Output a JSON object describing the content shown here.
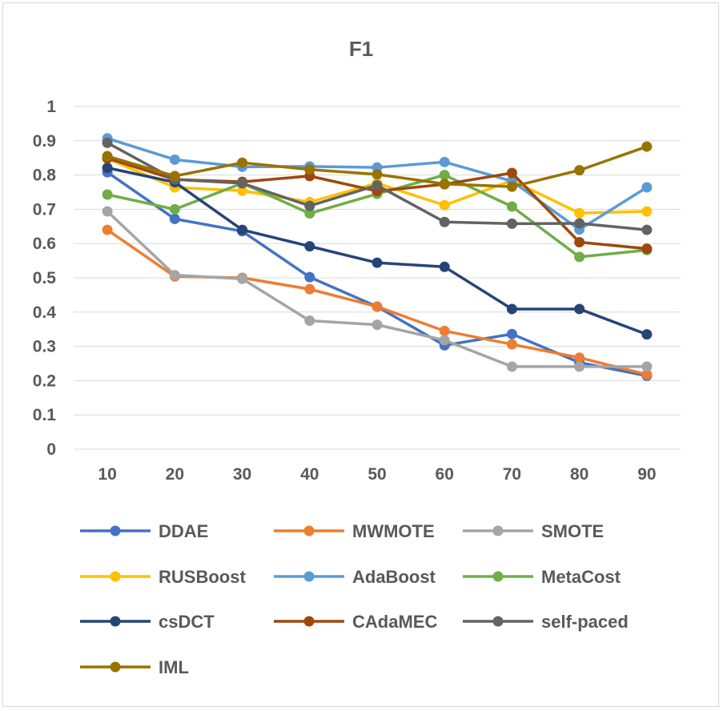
{
  "chart_data": {
    "type": "line",
    "title": "F1",
    "xlabel": "",
    "ylabel": "",
    "categories": [
      "10",
      "20",
      "30",
      "40",
      "50",
      "60",
      "70",
      "80",
      "90"
    ],
    "ylim": [
      0,
      1
    ],
    "yticks": [
      "0",
      "0.1",
      "0.2",
      "0.3",
      "0.4",
      "0.5",
      "0.6",
      "0.7",
      "0.8",
      "0.9",
      "1"
    ],
    "grid": true,
    "legend_position": "bottom",
    "series": [
      {
        "name": "DDAE",
        "color": "#4472C4",
        "values": [
          0.808,
          0.672,
          0.636,
          0.502,
          0.416,
          0.303,
          0.336,
          0.253,
          0.214
        ]
      },
      {
        "name": "MWMOTE",
        "color": "#ED7D31",
        "values": [
          0.64,
          0.504,
          0.5,
          0.467,
          0.416,
          0.345,
          0.306,
          0.267,
          0.218
        ]
      },
      {
        "name": "SMOTE",
        "color": "#A5A5A5",
        "values": [
          0.694,
          0.508,
          0.497,
          0.375,
          0.363,
          0.318,
          0.241,
          0.241,
          0.241
        ]
      },
      {
        "name": "RUSBoost",
        "color": "#FFC000",
        "values": [
          0.848,
          0.764,
          0.754,
          0.721,
          0.776,
          0.712,
          0.784,
          0.689,
          0.694
        ]
      },
      {
        "name": "AdaBoost",
        "color": "#5B9BD5",
        "values": [
          0.907,
          0.845,
          0.824,
          0.825,
          0.822,
          0.838,
          0.782,
          0.641,
          0.764
        ]
      },
      {
        "name": "MetaCost",
        "color": "#70AD47",
        "values": [
          0.743,
          0.7,
          0.776,
          0.688,
          0.745,
          0.8,
          0.708,
          0.561,
          0.581
        ]
      },
      {
        "name": "csDCT",
        "color": "#264478",
        "values": [
          0.821,
          0.779,
          0.64,
          0.592,
          0.544,
          0.532,
          0.409,
          0.409,
          0.335
        ]
      },
      {
        "name": "CAdaMEC",
        "color": "#9E480E",
        "values": [
          0.849,
          0.787,
          0.78,
          0.797,
          0.753,
          0.773,
          0.806,
          0.604,
          0.585
        ]
      },
      {
        "name": "self-paced",
        "color": "#636363",
        "values": [
          0.894,
          0.787,
          0.776,
          0.71,
          0.77,
          0.663,
          0.658,
          0.659,
          0.64
        ]
      },
      {
        "name": "IML",
        "color": "#997300",
        "values": [
          0.855,
          0.797,
          0.836,
          0.816,
          0.802,
          0.774,
          0.766,
          0.814,
          0.883
        ]
      }
    ]
  }
}
